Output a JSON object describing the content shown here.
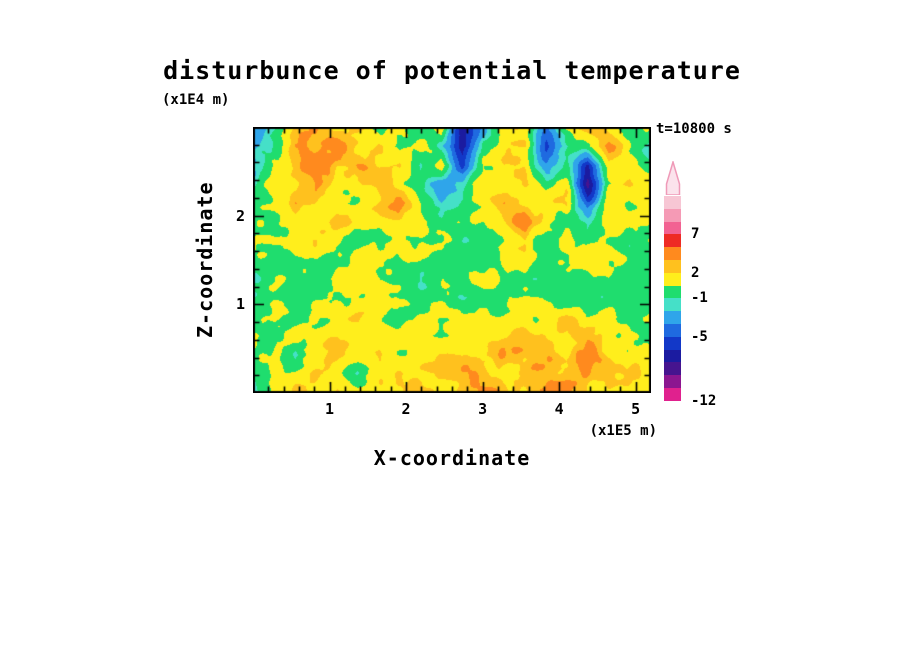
{
  "chart_data": {
    "type": "heatmap",
    "title": "disturbunce of potential temperature",
    "time_label": "t=10800 s",
    "x_label": "X-coordinate",
    "x_unit": "(x1E5 m)",
    "z_label": "Z-coordinate",
    "z_unit": "(x1E4 m)",
    "x_range": [
      0,
      5.2
    ],
    "z_range": [
      0,
      3.0
    ],
    "x_ticks": [
      1,
      2,
      3,
      4,
      5
    ],
    "x_tick_labels": [
      "1",
      "2",
      "3",
      "4",
      "5"
    ],
    "z_ticks": [
      1,
      2
    ],
    "z_tick_labels": [
      "1",
      "2"
    ],
    "minor_tick_step": 0.2,
    "colorbar": {
      "arrow_fill": "#fbe3ec",
      "arrow_stroke": "#ef9ab8",
      "bands": [
        {
          "from": 9,
          "to": 10,
          "color": "#f7c6d4"
        },
        {
          "from": 8,
          "to": 9,
          "color": "#f59ab5"
        },
        {
          "from": 7,
          "to": 8,
          "color": "#f26292"
        },
        {
          "from": 5,
          "to": 7,
          "color": "#ee2b24"
        },
        {
          "from": 3,
          "to": 5,
          "color": "#ff8a1e"
        },
        {
          "from": 2,
          "to": 3,
          "color": "#ffc11e"
        },
        {
          "from": 0.5,
          "to": 2,
          "color": "#ffee1c"
        },
        {
          "from": -1,
          "to": 0.5,
          "color": "#1fdd6e"
        },
        {
          "from": -2,
          "to": -1,
          "color": "#45e0c8"
        },
        {
          "from": -3.5,
          "to": -2,
          "color": "#2fa5ea"
        },
        {
          "from": -5,
          "to": -3.5,
          "color": "#1f6ae0"
        },
        {
          "from": -6.5,
          "to": -5,
          "color": "#1238c8"
        },
        {
          "from": -8,
          "to": -6.5,
          "color": "#1b1ba0"
        },
        {
          "from": -9.5,
          "to": -8,
          "color": "#46148f"
        },
        {
          "from": -11,
          "to": -9.5,
          "color": "#8c1690"
        },
        {
          "from": -12,
          "to": -11,
          "color": "#e0218e"
        }
      ],
      "labels": [
        {
          "text": "7",
          "boundary": 3
        },
        {
          "text": "2",
          "boundary": 6
        },
        {
          "text": "-1",
          "boundary": 8
        },
        {
          "text": "-5",
          "boundary": 11
        },
        {
          "text": "-12",
          "boundary": 16
        }
      ]
    },
    "grid": {
      "cols": 20,
      "rows": 15,
      "values": [
        [
          -2,
          -1,
          2,
          3,
          1,
          2,
          0,
          1,
          -1,
          2,
          -7,
          -2,
          2,
          1,
          -4,
          1,
          2,
          1,
          -1,
          1
        ],
        [
          -3,
          0,
          3,
          2,
          4,
          1,
          2,
          -1,
          1,
          -2,
          -8,
          -1,
          1,
          2,
          -5,
          -2,
          1,
          3,
          1,
          -1
        ],
        [
          -2,
          1,
          2,
          4,
          2,
          3,
          1,
          2,
          -2,
          1,
          -6,
          1,
          2,
          1,
          -3,
          -1,
          -6,
          2,
          1,
          0
        ],
        [
          -1,
          2,
          1,
          3,
          1,
          2,
          3,
          1,
          -1,
          -3,
          -2,
          2,
          1,
          2,
          -1,
          1,
          -8,
          1,
          2,
          1
        ],
        [
          0,
          1,
          3,
          2,
          1,
          1,
          2,
          3,
          1,
          -2,
          -1,
          1,
          3,
          1,
          1,
          2,
          -5,
          2,
          0,
          1
        ],
        [
          1,
          0,
          2,
          1,
          3,
          2,
          1,
          1,
          2,
          -1,
          0,
          1,
          2,
          4,
          1,
          0,
          -2,
          1,
          1,
          0
        ],
        [
          0,
          1,
          1,
          2,
          1,
          0,
          1,
          2,
          1,
          0,
          -1,
          0,
          1,
          2,
          0,
          1,
          0,
          0,
          -1,
          1
        ],
        [
          0,
          -1,
          0,
          1,
          0,
          1,
          0,
          1,
          0,
          -1,
          0,
          0,
          1,
          1,
          0,
          0,
          1,
          0,
          0,
          -1
        ],
        [
          -1,
          0,
          0,
          0,
          1,
          0,
          0,
          0,
          -1,
          0,
          0,
          1,
          0,
          0,
          -1,
          0,
          0,
          1,
          0,
          0
        ],
        [
          0,
          0,
          -1,
          0,
          0,
          0,
          1,
          0,
          0,
          0,
          -1,
          0,
          0,
          1,
          0,
          0,
          0,
          -1,
          0,
          0
        ],
        [
          0,
          1,
          0,
          1,
          1,
          2,
          1,
          0,
          1,
          1,
          1,
          2,
          1,
          1,
          1,
          2,
          1,
          1,
          0,
          1
        ],
        [
          1,
          0,
          1,
          1,
          2,
          1,
          1,
          2,
          1,
          1,
          2,
          1,
          2,
          3,
          2,
          1,
          3,
          1,
          1,
          0
        ],
        [
          1,
          1,
          -1,
          1,
          2,
          1,
          2,
          1,
          2,
          3,
          2,
          2,
          3,
          2,
          3,
          2,
          4,
          2,
          1,
          1
        ],
        [
          0,
          1,
          1,
          2,
          1,
          -1,
          2,
          3,
          2,
          2,
          3,
          3,
          2,
          3,
          2,
          3,
          3,
          2,
          2,
          1
        ],
        [
          -1,
          1,
          2,
          1,
          2,
          1,
          1,
          2,
          3,
          2,
          2,
          3,
          3,
          2,
          3,
          3,
          2,
          2,
          1,
          1
        ]
      ]
    }
  }
}
